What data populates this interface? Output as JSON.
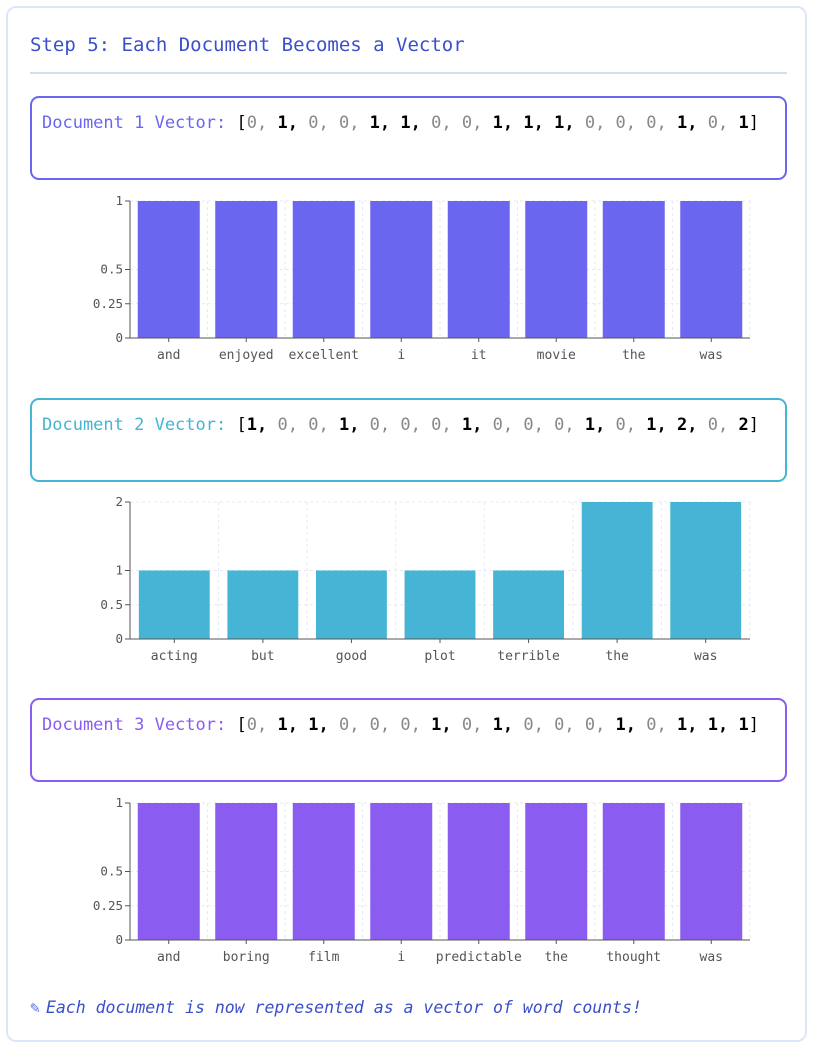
{
  "title": "Step 5: Each Document Becomes a Vector",
  "footer": {
    "icon": "pencil-icon",
    "text": "Each document is now represented as a vector of word counts!"
  },
  "documents": [
    {
      "label": "Document 1 Vector:",
      "color": "#6b66f0",
      "vector": [
        0,
        1,
        0,
        0,
        1,
        1,
        0,
        0,
        1,
        1,
        1,
        0,
        0,
        0,
        1,
        0,
        1
      ]
    },
    {
      "label": "Document 2 Vector:",
      "color": "#46b4d4",
      "vector": [
        1,
        0,
        0,
        1,
        0,
        0,
        0,
        1,
        0,
        0,
        0,
        1,
        0,
        1,
        2,
        0,
        2
      ]
    },
    {
      "label": "Document 3 Vector:",
      "color": "#8b5cf0",
      "vector": [
        0,
        1,
        1,
        0,
        0,
        0,
        1,
        0,
        1,
        0,
        0,
        0,
        1,
        0,
        1,
        1,
        1
      ]
    }
  ],
  "chart_data": [
    {
      "type": "bar",
      "categories": [
        "and",
        "enjoyed",
        "excellent",
        "i",
        "it",
        "movie",
        "the",
        "was"
      ],
      "values": [
        1,
        1,
        1,
        1,
        1,
        1,
        1,
        1
      ],
      "yticks": [
        "0",
        "0.25",
        "0.5",
        "1"
      ],
      "ylim": [
        0,
        1
      ],
      "color": "#6b66f0",
      "grid": true
    },
    {
      "type": "bar",
      "categories": [
        "acting",
        "but",
        "good",
        "plot",
        "terrible",
        "the",
        "was"
      ],
      "values": [
        1,
        1,
        1,
        1,
        1,
        2,
        2
      ],
      "yticks": [
        "0",
        "0.5",
        "1",
        "2"
      ],
      "ylim": [
        0,
        2
      ],
      "color": "#46b4d4",
      "grid": true
    },
    {
      "type": "bar",
      "categories": [
        "and",
        "boring",
        "film",
        "i",
        "predictable",
        "the",
        "thought",
        "was"
      ],
      "values": [
        1,
        1,
        1,
        1,
        1,
        1,
        1,
        1
      ],
      "yticks": [
        "0",
        "0.25",
        "0.5",
        "1"
      ],
      "ylim": [
        0,
        1
      ],
      "color": "#8b5cf0",
      "grid": true
    }
  ]
}
